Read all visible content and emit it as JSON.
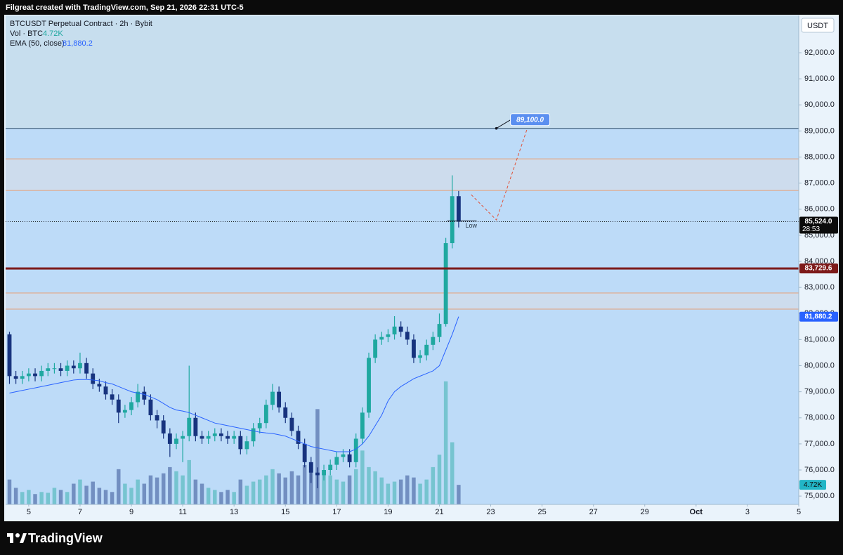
{
  "header": "Filgreat created with TradingView.com, Sep 21, 2026 22:31 UTC-5",
  "brand": "TradingView",
  "chart_data": {
    "type": "candlestick",
    "title": "BTCUSDT Perpetual Contract · 2h · Bybit",
    "currency": "USDT",
    "up_color": "#1fa8a0",
    "down_color": "#17337e",
    "xlim": [
      -0.9,
      30.0
    ],
    "ylim": [
      74680,
      93430
    ],
    "xticks": [
      {
        "value": 0,
        "label": "5"
      },
      {
        "value": 2,
        "label": "7"
      },
      {
        "value": 4,
        "label": "9"
      },
      {
        "value": 6,
        "label": "11"
      },
      {
        "value": 8,
        "label": "13"
      },
      {
        "value": 10,
        "label": "15"
      },
      {
        "value": 12,
        "label": "17"
      },
      {
        "value": 14,
        "label": "19"
      },
      {
        "value": 16,
        "label": "21"
      },
      {
        "value": 18,
        "label": "23"
      },
      {
        "value": 20,
        "label": "25"
      },
      {
        "value": 22,
        "label": "27"
      },
      {
        "value": 24,
        "label": "29"
      },
      {
        "value": 26,
        "label": "Oct"
      },
      {
        "value": 28,
        "label": "3"
      },
      {
        "value": 30,
        "label": "5"
      }
    ],
    "yticks": [
      {
        "value": 92000,
        "label": "92,000.0"
      },
      {
        "value": 91000,
        "label": "91,000.0"
      },
      {
        "value": 90000,
        "label": "90,000.0"
      },
      {
        "value": 89000,
        "label": "89,000.0"
      },
      {
        "value": 88000,
        "label": "88,000.0"
      },
      {
        "value": 87000,
        "label": "87,000.0"
      },
      {
        "value": 86000,
        "label": "86,000.0"
      },
      {
        "value": 85000,
        "label": "85,000.0"
      },
      {
        "value": 84000,
        "label": "84,000.0"
      },
      {
        "value": 83000,
        "label": "83,000.0"
      },
      {
        "value": 82000,
        "label": "82,000.0"
      },
      {
        "value": 81000,
        "label": "81,000.0"
      },
      {
        "value": 80000,
        "label": "80,000.0"
      },
      {
        "value": 79000,
        "label": "79,000.0"
      },
      {
        "value": 78000,
        "label": "78,000.0"
      },
      {
        "value": 77000,
        "label": "77,000.0"
      },
      {
        "value": 76000,
        "label": "76,000.0"
      },
      {
        "value": 75000,
        "label": "75,000.0"
      }
    ],
    "x": [
      -0.75,
      -0.5,
      -0.25,
      0,
      0.25,
      0.5,
      0.75,
      1,
      1.25,
      1.5,
      1.75,
      2,
      2.25,
      2.5,
      2.75,
      3,
      3.25,
      3.5,
      3.75,
      4,
      4.25,
      4.5,
      4.75,
      5,
      5.25,
      5.5,
      5.75,
      6,
      6.25,
      6.5,
      6.75,
      7,
      7.25,
      7.5,
      7.75,
      8,
      8.25,
      8.5,
      8.75,
      9,
      9.25,
      9.5,
      9.75,
      10,
      10.25,
      10.5,
      10.75,
      11,
      11.25,
      11.5,
      11.75,
      12,
      12.25,
      12.5,
      12.75,
      13,
      13.25,
      13.5,
      13.75,
      14,
      14.25,
      14.5,
      14.75,
      15,
      15.25,
      15.5,
      15.75,
      16,
      16.25,
      16.5,
      16.75
    ],
    "open": [
      81200,
      79600,
      79500,
      79600,
      79700,
      79600,
      79800,
      79900,
      79900,
      79800,
      80000,
      79900,
      80100,
      79700,
      79300,
      79200,
      78900,
      78700,
      78200,
      78300,
      78600,
      79000,
      78700,
      78100,
      77900,
      77400,
      77000,
      77200,
      77300,
      78000,
      77300,
      77200,
      77300,
      77400,
      77300,
      77200,
      77300,
      76800,
      77100,
      77600,
      77800,
      78500,
      79000,
      78400,
      78000,
      77500,
      77000,
      76300,
      75900,
      75800,
      76000,
      76200,
      76500,
      76600,
      76300,
      77200,
      78200,
      80300,
      81000,
      81100,
      81200,
      81500,
      81300,
      81000,
      80300,
      80400,
      80800,
      81100,
      81600,
      84700,
      86500
    ],
    "high": [
      81300,
      79800,
      79800,
      79900,
      79900,
      80000,
      80100,
      80100,
      80100,
      80200,
      80200,
      80500,
      80300,
      79900,
      79500,
      79400,
      79100,
      78900,
      78500,
      78800,
      79300,
      79200,
      78900,
      78300,
      78100,
      77600,
      77400,
      77500,
      80000,
      78200,
      77500,
      77500,
      77600,
      77600,
      77500,
      77500,
      77500,
      77300,
      77800,
      78000,
      78700,
      79300,
      79200,
      78600,
      78200,
      77700,
      77200,
      76500,
      76100,
      76200,
      76400,
      76700,
      76800,
      76800,
      77400,
      78400,
      80500,
      81200,
      81300,
      81400,
      81900,
      81700,
      81500,
      81200,
      80600,
      81000,
      81300,
      82000,
      84900,
      87300,
      86700
    ],
    "low": [
      79300,
      79300,
      79300,
      79400,
      79400,
      79400,
      79600,
      79700,
      79600,
      79600,
      79700,
      79700,
      79500,
      79100,
      79000,
      78700,
      78500,
      77800,
      78000,
      78100,
      78400,
      78500,
      77900,
      77600,
      77200,
      76500,
      76800,
      76300,
      77100,
      77100,
      77000,
      77000,
      77100,
      77100,
      77000,
      77000,
      76600,
      76600,
      76900,
      77400,
      77600,
      78300,
      78200,
      77800,
      77300,
      76800,
      76100,
      75500,
      75300,
      75600,
      75800,
      76000,
      76300,
      76100,
      76100,
      77000,
      78000,
      80100,
      80800,
      80900,
      81000,
      81100,
      80800,
      80100,
      80100,
      80200,
      80600,
      80900,
      81500,
      84500,
      85300
    ],
    "close": [
      79600,
      79500,
      79600,
      79700,
      79600,
      79800,
      79900,
      79900,
      79800,
      80000,
      79900,
      80100,
      79700,
      79300,
      79200,
      78900,
      78700,
      78200,
      78300,
      78600,
      79000,
      78700,
      78100,
      77900,
      77400,
      77000,
      77200,
      77300,
      78000,
      77300,
      77200,
      77300,
      77400,
      77300,
      77200,
      77300,
      76800,
      77100,
      77600,
      77800,
      78500,
      79000,
      78400,
      78000,
      77500,
      77000,
      76300,
      75900,
      75800,
      76000,
      76200,
      76500,
      76600,
      76300,
      77200,
      78200,
      80300,
      81000,
      81100,
      81200,
      81500,
      81300,
      81000,
      80300,
      80400,
      80800,
      81100,
      81600,
      84700,
      86500,
      85524
    ],
    "volume": {
      "name": "Vol · BTC",
      "last_label": "4.72K",
      "color": "#22b5c6",
      "ylim": [
        0,
        118000
      ],
      "values": [
        6000,
        4000,
        3000,
        3500,
        2500,
        3000,
        2800,
        4000,
        3500,
        3000,
        5000,
        6000,
        4500,
        5500,
        4000,
        3500,
        3000,
        8500,
        5000,
        4000,
        6000,
        5000,
        7000,
        6500,
        7500,
        9000,
        8000,
        7000,
        10700,
        6000,
        5000,
        4000,
        3500,
        3000,
        3500,
        3000,
        6000,
        4500,
        5500,
        6000,
        7000,
        8500,
        7500,
        6500,
        8000,
        7000,
        9500,
        10000,
        23000,
        8000,
        7000,
        6000,
        5500,
        7000,
        8500,
        13000,
        9000,
        8000,
        6500,
        5000,
        5500,
        6000,
        7000,
        6500,
        5000,
        6000,
        9000,
        12000,
        29700,
        15000,
        4720
      ]
    },
    "ema": {
      "name": "EMA (50, close)",
      "last_label": "81,880.2",
      "color": "#2962ff",
      "values": [
        78950,
        79000,
        79050,
        79100,
        79150,
        79200,
        79250,
        79300,
        79350,
        79400,
        79450,
        79470,
        79470,
        79450,
        79420,
        79350,
        79300,
        79200,
        79100,
        79000,
        78950,
        78900,
        78800,
        78700,
        78550,
        78400,
        78300,
        78260,
        78200,
        78100,
        78000,
        77900,
        77800,
        77750,
        77700,
        77650,
        77600,
        77550,
        77500,
        77450,
        77420,
        77400,
        77350,
        77300,
        77200,
        77100,
        77000,
        76900,
        76850,
        76800,
        76750,
        76700,
        76700,
        76700,
        76800,
        77000,
        77300,
        77700,
        78100,
        78650,
        79000,
        79200,
        79350,
        79500,
        79600,
        79700,
        79800,
        80000,
        80600,
        81200,
        81880.2
      ]
    },
    "last_price": {
      "value": 85524,
      "label": "85,524.0",
      "countdown": "28:53"
    },
    "level": {
      "value": 83729.6,
      "label": "83,729.6",
      "color": "#7d1a1a"
    },
    "zones": [
      [
        86720,
        87930
      ],
      [
        82170,
        82790
      ]
    ],
    "target": {
      "value": 89100,
      "label": "89,100.0",
      "x": 18.22
    },
    "projection": {
      "x": [
        17.24,
        18.22,
        19.43
      ],
      "y": [
        86558,
        85588,
        89117
      ]
    },
    "low_marker": {
      "label": "Low",
      "value": 85550,
      "x": [
        16.3,
        17.45
      ]
    }
  }
}
